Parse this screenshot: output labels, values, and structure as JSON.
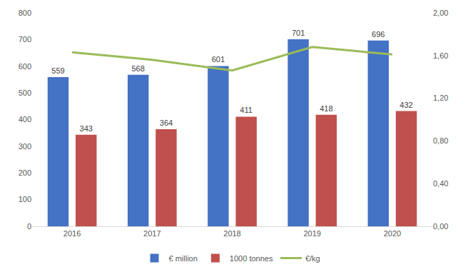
{
  "chart_data": {
    "type": "bar",
    "categories": [
      "2016",
      "2017",
      "2018",
      "2019",
      "2020"
    ],
    "series": [
      {
        "name": "€ million",
        "type": "bar",
        "color": "#4472c4",
        "data_labels": true,
        "values": [
          559,
          568,
          601,
          701,
          696
        ]
      },
      {
        "name": "1000 tonnes",
        "type": "bar",
        "color": "#c0504d",
        "data_labels": true,
        "values": [
          343,
          364,
          411,
          418,
          432
        ]
      },
      {
        "name": "€/kg",
        "type": "line",
        "color": "#9bbb59",
        "axis": "y2",
        "data_labels": false,
        "values": [
          1.63,
          1.56,
          1.46,
          1.68,
          1.61
        ]
      }
    ],
    "ylim": [
      0,
      800
    ],
    "yticks": [
      0,
      100,
      200,
      300,
      400,
      500,
      600,
      700,
      800
    ],
    "y2lim": [
      0,
      2
    ],
    "y2ticks": [
      {
        "value": 0,
        "label": "0,00"
      },
      {
        "value": 0.4,
        "label": "0,40"
      },
      {
        "value": 0.8,
        "label": "0,80"
      },
      {
        "value": 1.2,
        "label": "1,20"
      },
      {
        "value": 1.6,
        "label": "1,60"
      },
      {
        "value": 2,
        "label": "2,00"
      }
    ],
    "grid": false,
    "legend": "bottom"
  }
}
